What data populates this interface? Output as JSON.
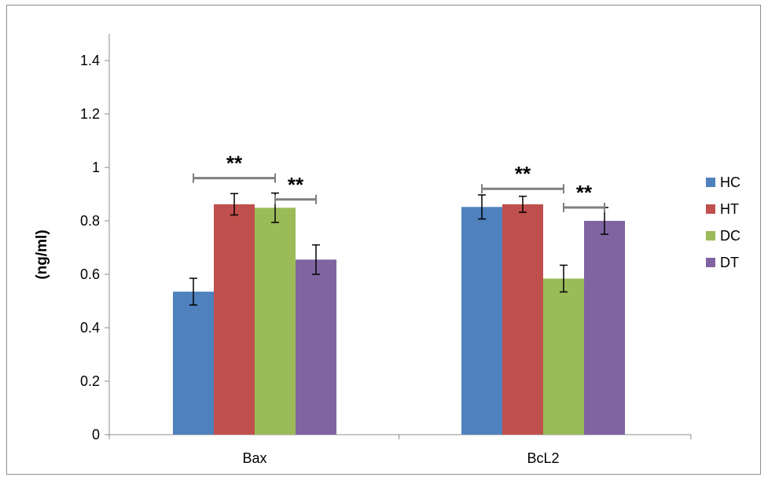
{
  "chart_data": {
    "type": "bar",
    "title": "",
    "xlabel": "",
    "ylabel": "(ng/ml)",
    "ylim": [
      0,
      1.5
    ],
    "yticks": [
      "0",
      "0.2",
      "0.4",
      "0.6",
      "0.8",
      "1",
      "1.2",
      "1.4"
    ],
    "grid": false,
    "legend_position": "right",
    "categories": [
      "Bax",
      "BcL2"
    ],
    "series": [
      {
        "name": "HC",
        "color": "#4f81bd",
        "values": [
          0.535,
          0.852
        ],
        "errors": [
          0.05,
          0.045
        ]
      },
      {
        "name": "HT",
        "color": "#c0504d",
        "values": [
          0.862,
          0.862
        ],
        "errors": [
          0.04,
          0.03
        ]
      },
      {
        "name": "DC",
        "color": "#9bbb59",
        "values": [
          0.849,
          0.584
        ],
        "errors": [
          0.055,
          0.05
        ]
      },
      {
        "name": "DT",
        "color": "#8064a2",
        "values": [
          0.655,
          0.8
        ],
        "errors": [
          0.055,
          0.05
        ]
      }
    ],
    "significance": [
      {
        "label": "**",
        "category": "Bax",
        "from_series": "HC",
        "to_series": "DC",
        "y": 0.96
      },
      {
        "label": "**",
        "category": "Bax",
        "from_series": "DC",
        "to_series": "DT",
        "y": 0.88
      },
      {
        "label": "**",
        "category": "BcL2",
        "from_series": "HC",
        "to_series": "DC",
        "y": 0.92
      },
      {
        "label": "**",
        "category": "BcL2",
        "from_series": "DC",
        "to_series": "DT",
        "y": 0.85
      }
    ]
  }
}
